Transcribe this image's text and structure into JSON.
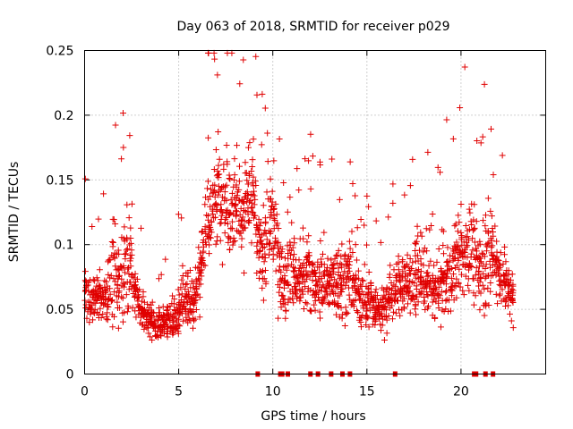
{
  "chart_data": {
    "type": "scatter",
    "title": "Day 063 of 2018, SRMTID for receiver p029",
    "xlabel": "GPS time / hours",
    "ylabel": "SRMTID / TECUs",
    "xlim": [
      0,
      24.5
    ],
    "ylim": [
      0,
      0.25
    ],
    "xticks": [
      0,
      5,
      10,
      15,
      20
    ],
    "yticks": [
      0,
      0.05,
      0.1,
      0.15,
      0.2,
      0.25
    ],
    "ytick_labels": [
      "0",
      "0.05",
      "0.1",
      "0.15",
      "0.2",
      "0.25"
    ],
    "grid": true,
    "marker": "+",
    "color": "#e00000",
    "series": [
      {
        "name": "SRMTID",
        "x": [
          0.0,
          0.2,
          0.4,
          0.6,
          0.8,
          1.0,
          1.2,
          1.4,
          1.6,
          1.8,
          2.0,
          2.2,
          2.4,
          2.6,
          2.8,
          3.0,
          3.2,
          3.4,
          3.6,
          3.8,
          4.0,
          4.2,
          4.4,
          4.6,
          4.8,
          5.0,
          5.2,
          5.4,
          5.6,
          5.8,
          6.0,
          6.2,
          6.4,
          6.6,
          6.8,
          7.0,
          7.2,
          7.4,
          7.6,
          7.8,
          8.0,
          8.2,
          8.4,
          8.6,
          8.8,
          9.0,
          9.2,
          9.4,
          9.6,
          9.8,
          10.0,
          10.2,
          10.4,
          10.6,
          10.8,
          11.0,
          11.2,
          11.4,
          11.6,
          11.8,
          12.0,
          12.2,
          12.4,
          12.6,
          12.8,
          13.0,
          13.2,
          13.4,
          13.6,
          13.8,
          14.0,
          14.2,
          14.4,
          14.6,
          14.8,
          15.0,
          15.2,
          15.4,
          15.6,
          15.8,
          16.0,
          16.2,
          16.4,
          16.6,
          16.8,
          17.0,
          17.2,
          17.4,
          17.6,
          17.8,
          18.0,
          18.2,
          18.4,
          18.6,
          18.8,
          19.0,
          19.2,
          19.4,
          19.6,
          19.8,
          20.0,
          20.2,
          20.4,
          20.6,
          20.8,
          21.0,
          21.2,
          21.4,
          21.6,
          21.8,
          22.0,
          22.2,
          22.4,
          22.6,
          22.8
        ],
        "y": [
          0.065,
          0.06,
          0.055,
          0.055,
          0.058,
          0.06,
          0.065,
          0.07,
          0.075,
          0.07,
          0.075,
          0.085,
          0.09,
          0.07,
          0.06,
          0.05,
          0.045,
          0.045,
          0.042,
          0.04,
          0.04,
          0.038,
          0.04,
          0.042,
          0.045,
          0.05,
          0.06,
          0.065,
          0.06,
          0.055,
          0.07,
          0.09,
          0.11,
          0.12,
          0.13,
          0.135,
          0.14,
          0.14,
          0.135,
          0.13,
          0.135,
          0.13,
          0.125,
          0.13,
          0.14,
          0.13,
          0.1,
          0.09,
          0.1,
          0.11,
          0.12,
          0.1,
          0.08,
          0.07,
          0.075,
          0.08,
          0.075,
          0.07,
          0.07,
          0.075,
          0.075,
          0.07,
          0.065,
          0.07,
          0.075,
          0.07,
          0.07,
          0.075,
          0.075,
          0.07,
          0.075,
          0.07,
          0.065,
          0.06,
          0.06,
          0.055,
          0.055,
          0.05,
          0.05,
          0.05,
          0.055,
          0.06,
          0.065,
          0.065,
          0.07,
          0.07,
          0.07,
          0.075,
          0.075,
          0.075,
          0.07,
          0.07,
          0.065,
          0.065,
          0.07,
          0.07,
          0.075,
          0.075,
          0.08,
          0.085,
          0.09,
          0.095,
          0.1,
          0.09,
          0.085,
          0.08,
          0.085,
          0.09,
          0.095,
          0.09,
          0.08,
          0.075,
          0.07,
          0.065,
          0.06
        ],
        "spread": [
          0.025,
          0.025,
          0.02,
          0.02,
          0.022,
          0.025,
          0.03,
          0.035,
          0.05,
          0.04,
          0.035,
          0.04,
          0.045,
          0.03,
          0.022,
          0.02,
          0.018,
          0.018,
          0.016,
          0.016,
          0.016,
          0.016,
          0.016,
          0.018,
          0.02,
          0.025,
          0.03,
          0.035,
          0.03,
          0.025,
          0.03,
          0.04,
          0.045,
          0.045,
          0.045,
          0.045,
          0.045,
          0.045,
          0.05,
          0.05,
          0.05,
          0.04,
          0.04,
          0.045,
          0.05,
          0.05,
          0.04,
          0.035,
          0.04,
          0.045,
          0.05,
          0.04,
          0.035,
          0.03,
          0.035,
          0.04,
          0.035,
          0.03,
          0.03,
          0.035,
          0.035,
          0.03,
          0.03,
          0.03,
          0.035,
          0.035,
          0.03,
          0.035,
          0.035,
          0.03,
          0.035,
          0.03,
          0.03,
          0.025,
          0.025,
          0.025,
          0.025,
          0.022,
          0.022,
          0.022,
          0.025,
          0.025,
          0.028,
          0.028,
          0.03,
          0.03,
          0.03,
          0.035,
          0.035,
          0.035,
          0.03,
          0.03,
          0.03,
          0.03,
          0.03,
          0.03,
          0.035,
          0.035,
          0.035,
          0.04,
          0.04,
          0.045,
          0.045,
          0.04,
          0.04,
          0.035,
          0.04,
          0.04,
          0.045,
          0.04,
          0.035,
          0.03,
          0.03,
          0.025,
          0.025
        ]
      }
    ],
    "zero_markers_x": [
      9.2,
      10.4,
      10.5,
      10.8,
      12.0,
      12.4,
      13.1,
      13.7,
      14.1,
      16.5,
      20.7,
      20.8,
      21.3,
      21.7
    ]
  }
}
